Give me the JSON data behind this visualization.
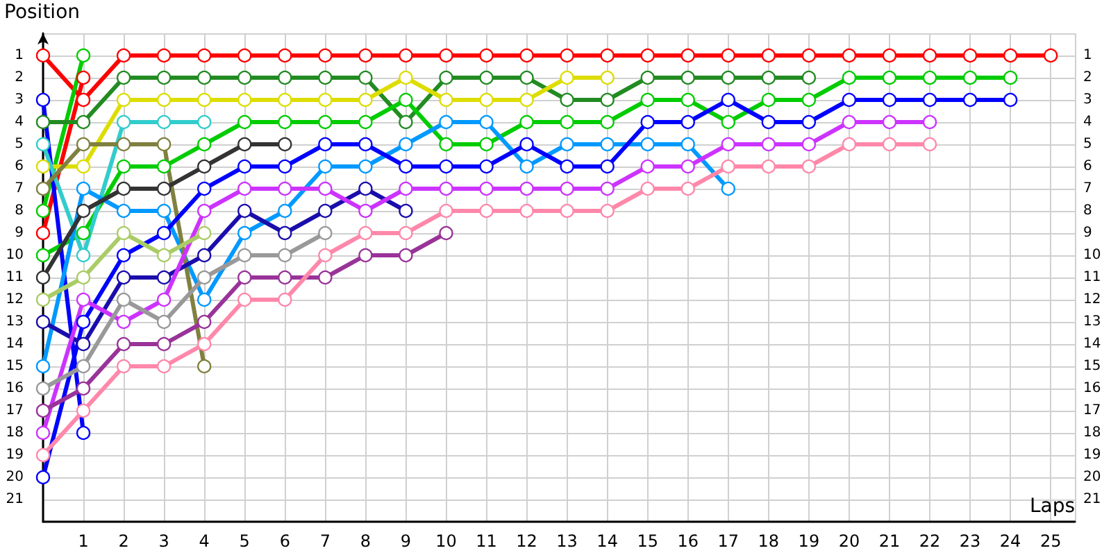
{
  "chart_data": {
    "type": "line",
    "xlabel": "Laps",
    "ylabel": "Position",
    "marker": "circle",
    "grid": true,
    "xlim": [
      0,
      25.6
    ],
    "xticks": [
      1,
      2,
      3,
      4,
      5,
      6,
      7,
      8,
      9,
      10,
      11,
      12,
      13,
      14,
      15,
      16,
      17,
      18,
      19,
      20,
      21,
      22,
      23,
      24,
      25
    ],
    "ylim": [
      22,
      0
    ],
    "yticks": [
      1,
      2,
      3,
      4,
      5,
      6,
      7,
      8,
      9,
      10,
      11,
      12,
      13,
      14,
      15,
      16,
      17,
      18,
      19,
      20,
      21
    ],
    "y2lim": [
      22,
      0
    ],
    "y2ticks": [
      1,
      2,
      3,
      4,
      5,
      6,
      7,
      8,
      9,
      10,
      11,
      12,
      13,
      14,
      15,
      16,
      17,
      18,
      19,
      20,
      21
    ],
    "series": [
      {
        "color": "#ff0000",
        "x": [
          0,
          1,
          2,
          3,
          4,
          5,
          6,
          7,
          8,
          9,
          10,
          11,
          12,
          13,
          14,
          15,
          16,
          17,
          18,
          19,
          20,
          21,
          22,
          23,
          24,
          25
        ],
        "values": [
          1,
          3,
          1,
          1,
          1,
          1,
          1,
          1,
          1,
          1,
          1,
          1,
          1,
          1,
          1,
          1,
          1,
          1,
          1,
          1,
          1,
          1,
          1,
          1,
          1,
          1
        ]
      },
      {
        "color": "#ff0000",
        "x": [
          0,
          1
        ],
        "values": [
          9,
          2
        ]
      },
      {
        "color": "#00cc00",
        "x": [
          0,
          1
        ],
        "values": [
          8,
          1
        ]
      },
      {
        "color": "#0000ff",
        "x": [
          0,
          1
        ],
        "values": [
          3,
          18
        ]
      },
      {
        "color": "#228b22",
        "x": [
          0,
          1,
          2,
          3,
          4,
          5,
          6,
          7,
          8,
          9,
          10,
          11,
          12,
          13,
          14,
          15,
          16,
          17,
          18,
          19
        ],
        "values": [
          4,
          4,
          2,
          2,
          2,
          2,
          2,
          2,
          2,
          4,
          2,
          2,
          2,
          3,
          3,
          2,
          2,
          2,
          2,
          2
        ]
      },
      {
        "color": "#dddd00",
        "x": [
          0,
          1,
          2,
          3,
          4,
          5,
          6,
          7,
          8,
          9,
          10,
          11,
          12,
          13,
          14
        ],
        "values": [
          6,
          6,
          3,
          3,
          3,
          3,
          3,
          3,
          3,
          2,
          3,
          3,
          3,
          2,
          2
        ]
      },
      {
        "color": "#00cc00",
        "x": [
          0,
          1,
          2,
          3,
          4,
          5,
          6,
          7,
          8,
          9,
          10,
          11,
          12,
          13,
          14,
          15,
          16,
          17,
          18,
          19,
          20,
          21,
          22,
          23,
          24
        ],
        "values": [
          10,
          9,
          6,
          6,
          5,
          4,
          4,
          4,
          4,
          3,
          5,
          5,
          4,
          4,
          4,
          3,
          3,
          4,
          3,
          3,
          2,
          2,
          2,
          2,
          2
        ]
      },
      {
        "color": "#33cccc",
        "x": [
          0,
          1,
          2,
          3,
          4
        ],
        "values": [
          5,
          10,
          4,
          4,
          4
        ]
      },
      {
        "color": "#0099ff",
        "x": [
          0,
          1,
          2,
          3,
          4,
          5,
          6,
          7,
          8,
          9,
          10,
          11,
          12,
          13,
          14,
          15,
          16,
          17
        ],
        "values": [
          15,
          7,
          8,
          8,
          12,
          9,
          8,
          6,
          6,
          5,
          4,
          4,
          6,
          5,
          5,
          5,
          5,
          7
        ]
      },
      {
        "color": "#808040",
        "x": [
          0,
          1,
          2,
          3,
          4
        ],
        "values": [
          7,
          5,
          5,
          5,
          15
        ]
      },
      {
        "color": "#333333",
        "x": [
          0,
          1,
          2,
          3,
          4,
          5,
          6
        ],
        "values": [
          11,
          8,
          7,
          7,
          6,
          5,
          5
        ]
      },
      {
        "color": "#0000ff",
        "x": [
          0,
          1,
          2,
          3,
          4,
          5,
          6,
          7,
          8,
          9,
          10,
          11,
          12,
          13,
          14,
          15,
          16,
          17,
          18,
          19,
          20,
          21,
          22,
          23,
          24
        ],
        "values": [
          20,
          13,
          10,
          9,
          7,
          6,
          6,
          5,
          5,
          6,
          6,
          6,
          5,
          6,
          6,
          4,
          4,
          3,
          4,
          4,
          3,
          3,
          3,
          3,
          3
        ]
      },
      {
        "color": "#1a0dab",
        "x": [
          0,
          1,
          2,
          3,
          4,
          5,
          6,
          7,
          8,
          9
        ],
        "values": [
          13,
          14,
          11,
          11,
          10,
          8,
          9,
          8,
          7,
          8
        ]
      },
      {
        "color": "#cc33ff",
        "x": [
          0,
          1,
          2,
          3,
          4,
          5,
          6,
          7,
          8,
          9,
          10,
          11,
          12,
          13,
          14,
          15,
          16,
          17,
          18,
          19,
          20,
          21,
          22
        ],
        "values": [
          18,
          12,
          13,
          12,
          8,
          7,
          7,
          7,
          8,
          7,
          7,
          7,
          7,
          7,
          7,
          6,
          6,
          5,
          5,
          5,
          4,
          4,
          4
        ]
      },
      {
        "color": "#aacc66",
        "x": [
          0,
          1,
          2,
          3,
          4
        ],
        "values": [
          12,
          11,
          9,
          10,
          9
        ]
      },
      {
        "color": "#999999",
        "x": [
          0,
          1,
          2,
          3,
          4,
          5,
          6,
          7
        ],
        "values": [
          16,
          15,
          12,
          13,
          11,
          10,
          10,
          9
        ]
      },
      {
        "color": "#993399",
        "x": [
          0,
          1,
          2,
          3,
          4,
          5,
          6,
          7,
          8,
          9,
          10
        ],
        "values": [
          17,
          16,
          14,
          14,
          13,
          11,
          11,
          11,
          10,
          10,
          9
        ]
      },
      {
        "color": "#ff88aa",
        "x": [
          0,
          1,
          2,
          3,
          4,
          5,
          6,
          7,
          8,
          9,
          10,
          11,
          12,
          13,
          14,
          15,
          16,
          17,
          18,
          19,
          20,
          21,
          22
        ],
        "values": [
          19,
          17,
          15,
          15,
          14,
          12,
          12,
          10,
          9,
          9,
          8,
          8,
          8,
          8,
          8,
          7,
          7,
          6,
          6,
          6,
          5,
          5,
          5
        ]
      }
    ]
  }
}
